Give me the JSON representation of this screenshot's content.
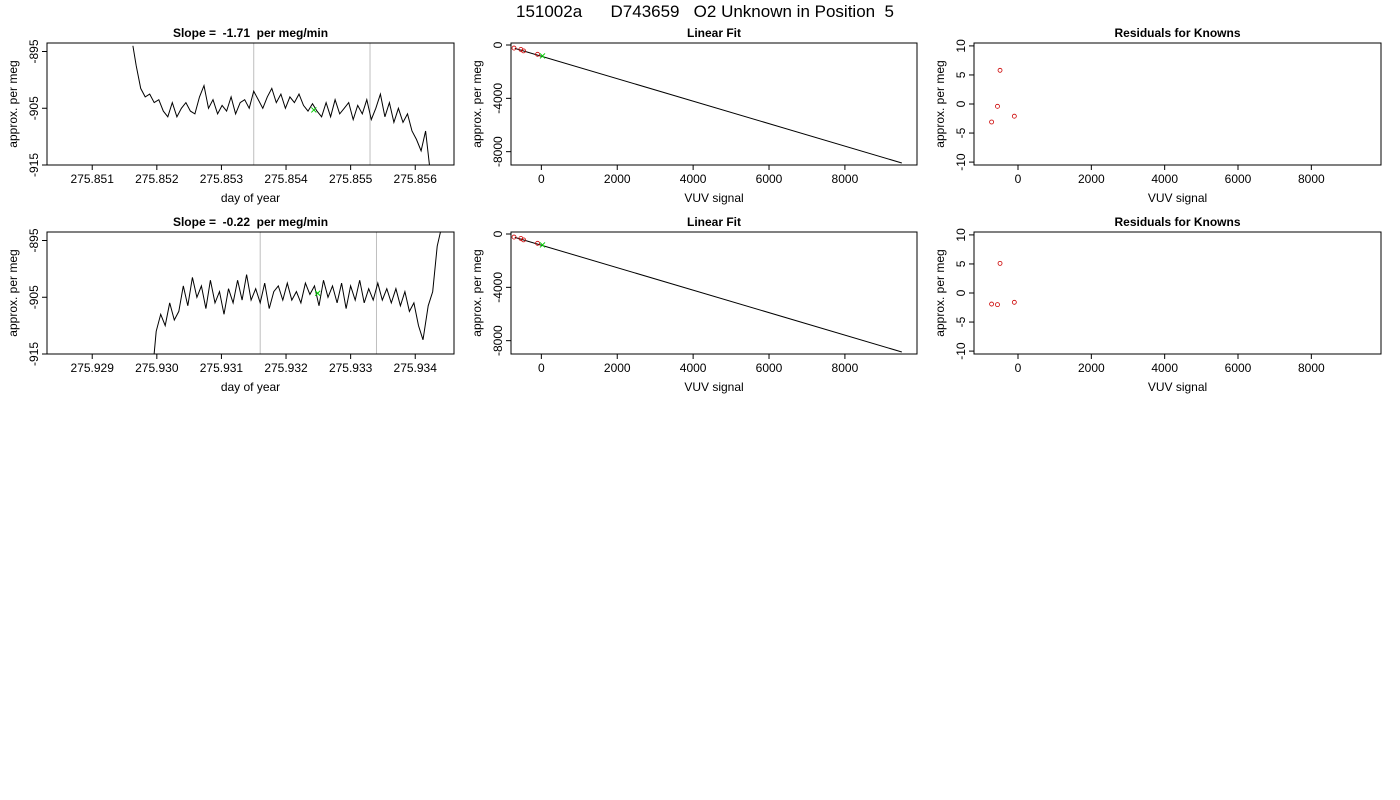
{
  "page": {
    "title": "151002a      D743659   O2 Unknown in Position  5"
  },
  "chart_data": [
    {
      "type": "line",
      "title": "Slope =  -1.71  per meg/min",
      "xlabel": "day of year",
      "ylabel": "approx. per meg",
      "xlim": [
        275.8503,
        275.8566
      ],
      "ylim": [
        -915,
        -893.5
      ],
      "xticks": [
        "275.851",
        "275.852",
        "275.853",
        "275.854",
        "275.855",
        "275.856"
      ],
      "xtick_values": [
        275.851,
        275.852,
        275.853,
        275.854,
        275.855,
        275.856
      ],
      "yticks": [
        "-915",
        "-905",
        "-895"
      ],
      "ytick_values": [
        -915,
        -905,
        -895
      ],
      "vlines": [
        275.8535,
        275.8553
      ],
      "colors": {
        "line": "#000000",
        "vline": "#bebebe",
        "marker": "#00cc00"
      },
      "series": [
        {
          "x": [
            275.85163,
            275.85168,
            275.85175,
            275.85182,
            275.85189,
            275.85196,
            275.85203,
            275.8521,
            275.85217,
            275.85224,
            275.85231,
            275.85238,
            275.85245,
            275.85252,
            275.85259,
            275.85266,
            275.85273,
            275.8528,
            275.85287,
            275.85294,
            275.85301,
            275.85308,
            275.85315,
            275.85322,
            275.85329,
            275.85336,
            275.85343,
            275.8535,
            275.85357,
            275.85364,
            275.85371,
            275.85378,
            275.85385,
            275.85392,
            275.85399,
            275.85406,
            275.85413,
            275.8542,
            275.85427,
            275.85434,
            275.85441,
            275.85448,
            275.85455,
            275.85462,
            275.85469,
            275.85476,
            275.85483,
            275.8549,
            275.85497,
            275.85504,
            275.85511,
            275.85518,
            275.85525,
            275.85532,
            275.85539,
            275.85546,
            275.85553,
            275.8556,
            275.85567,
            275.85574,
            275.85581,
            275.85588,
            275.85595,
            275.85602,
            275.85609,
            275.85616,
            275.85623
          ],
          "y": [
            -894,
            -897.5,
            -901.5,
            -903,
            -902.5,
            -904,
            -903.5,
            -905.5,
            -906.5,
            -904,
            -906.5,
            -905,
            -904,
            -905.5,
            -906,
            -903,
            -901,
            -905,
            -903.5,
            -906,
            -904.5,
            -905.5,
            -903,
            -906,
            -904,
            -903.5,
            -905,
            -902,
            -903.5,
            -905,
            -903,
            -901.5,
            -904,
            -902.5,
            -905,
            -903,
            -904,
            -902.5,
            -904.5,
            -905.5,
            -904.2,
            -905.5,
            -906.5,
            -904,
            -906.5,
            -903.5,
            -906,
            -905,
            -904,
            -907,
            -904.5,
            -906,
            -903.5,
            -907,
            -905,
            -902.5,
            -906.5,
            -904,
            -907.5,
            -905,
            -907.5,
            -906,
            -909,
            -910.5,
            -912.5,
            -909,
            -916
          ]
        }
      ],
      "markers": [
        {
          "x": 275.85443,
          "y": -905.3
        }
      ]
    },
    {
      "type": "scatter",
      "title": "Linear Fit",
      "xlabel": "VUV signal",
      "ylabel": "approx. per meg",
      "xlim": [
        -800,
        9900
      ],
      "ylim": [
        -9000,
        150
      ],
      "xticks": [
        "0",
        "2000",
        "4000",
        "6000",
        "8000"
      ],
      "xtick_values": [
        0,
        2000,
        4000,
        6000,
        8000
      ],
      "yticks": [
        "-8000",
        "-4000",
        "0"
      ],
      "ytick_values": [
        -8000,
        -4000,
        0
      ],
      "fit_line": {
        "x": [
          -700,
          9500
        ],
        "y": [
          -250,
          -8850
        ]
      },
      "colors": {
        "points": "#cc0000",
        "marker": "#00cc00",
        "line": "#000000"
      },
      "points": [
        {
          "x": -720,
          "y": -230
        },
        {
          "x": -540,
          "y": -330
        },
        {
          "x": -470,
          "y": -440
        },
        {
          "x": -100,
          "y": -700
        }
      ],
      "markers": [
        {
          "x": 30,
          "y": -820
        }
      ]
    },
    {
      "type": "scatter",
      "title": "Residuals for Knowns",
      "xlabel": "VUV signal",
      "ylabel": "approx. per meg",
      "xlim": [
        -1200,
        9900
      ],
      "ylim": [
        -10.5,
        10.5
      ],
      "xticks": [
        "0",
        "2000",
        "4000",
        "6000",
        "8000"
      ],
      "xtick_values": [
        0,
        2000,
        4000,
        6000,
        8000
      ],
      "yticks": [
        "-10",
        "-5",
        "0",
        "5",
        "10"
      ],
      "ytick_values": [
        -10,
        -5,
        0,
        5,
        10
      ],
      "colors": {
        "points": "#cc0000"
      },
      "points": [
        {
          "x": -720,
          "y": -3.1
        },
        {
          "x": -560,
          "y": -0.4
        },
        {
          "x": -490,
          "y": 5.8
        },
        {
          "x": -100,
          "y": -2.1
        }
      ]
    },
    {
      "type": "line",
      "title": "Slope =  -0.22  per meg/min",
      "xlabel": "day of year",
      "ylabel": "approx. per meg",
      "xlim": [
        275.9283,
        275.9346
      ],
      "ylim": [
        -915,
        -893.5
      ],
      "xticks": [
        "275.929",
        "275.930",
        "275.931",
        "275.932",
        "275.933",
        "275.934"
      ],
      "xtick_values": [
        275.929,
        275.93,
        275.931,
        275.932,
        275.933,
        275.934
      ],
      "yticks": [
        "-915",
        "-905",
        "-895"
      ],
      "ytick_values": [
        -915,
        -905,
        -895
      ],
      "vlines": [
        275.9316,
        275.9334
      ],
      "colors": {
        "line": "#000000",
        "vline": "#bebebe",
        "marker": "#00cc00"
      },
      "series": [
        {
          "x": [
            275.92995,
            275.92999,
            275.93006,
            275.93013,
            275.9302,
            275.93027,
            275.93034,
            275.93041,
            275.93048,
            275.93055,
            275.93062,
            275.93069,
            275.93076,
            275.93083,
            275.9309,
            275.93097,
            275.93104,
            275.93111,
            275.93118,
            275.93125,
            275.93132,
            275.93139,
            275.93146,
            275.93153,
            275.9316,
            275.93167,
            275.93174,
            275.93181,
            275.93188,
            275.93195,
            275.93202,
            275.93209,
            275.93216,
            275.93223,
            275.9323,
            275.93237,
            275.93244,
            275.93251,
            275.93258,
            275.93265,
            275.93272,
            275.93279,
            275.93286,
            275.93293,
            275.933,
            275.93307,
            275.93314,
            275.93321,
            275.93328,
            275.93335,
            275.93342,
            275.93349,
            275.93356,
            275.93363,
            275.9337,
            275.93377,
            275.93384,
            275.93391,
            275.93398,
            275.93405,
            275.93412,
            275.9342,
            275.93427,
            275.93434,
            275.9344
          ],
          "y": [
            -916,
            -911,
            -908,
            -910,
            -906,
            -909,
            -907.5,
            -903,
            -906.5,
            -901.5,
            -905,
            -903,
            -907,
            -902,
            -906,
            -904,
            -908,
            -903.5,
            -906,
            -902,
            -905.5,
            -901,
            -905.5,
            -903.5,
            -906,
            -902.5,
            -907,
            -904,
            -903,
            -905.5,
            -902.5,
            -905.5,
            -904,
            -906,
            -902.5,
            -904.5,
            -903,
            -906.5,
            -902,
            -905,
            -903,
            -906,
            -902.5,
            -907,
            -903,
            -905.5,
            -902,
            -906,
            -903.5,
            -905.5,
            -902.5,
            -905.5,
            -903.5,
            -906,
            -903.5,
            -906.5,
            -904,
            -907.5,
            -906,
            -910,
            -912.5,
            -906.5,
            -904,
            -896,
            -893
          ]
        }
      ],
      "markers": [
        {
          "x": 275.93249,
          "y": -904.3
        }
      ]
    },
    {
      "type": "scatter",
      "title": "Linear Fit",
      "xlabel": "VUV signal",
      "ylabel": "approx. per meg",
      "xlim": [
        -800,
        9900
      ],
      "ylim": [
        -9000,
        150
      ],
      "xticks": [
        "0",
        "2000",
        "4000",
        "6000",
        "8000"
      ],
      "xtick_values": [
        0,
        2000,
        4000,
        6000,
        8000
      ],
      "yticks": [
        "-8000",
        "-4000",
        "0"
      ],
      "ytick_values": [
        -8000,
        -4000,
        0
      ],
      "fit_line": {
        "x": [
          -700,
          9500
        ],
        "y": [
          -250,
          -8850
        ]
      },
      "colors": {
        "points": "#cc0000",
        "marker": "#00cc00",
        "line": "#000000"
      },
      "points": [
        {
          "x": -720,
          "y": -230
        },
        {
          "x": -540,
          "y": -330
        },
        {
          "x": -470,
          "y": -440
        },
        {
          "x": -100,
          "y": -700
        }
      ],
      "markers": [
        {
          "x": 30,
          "y": -820
        }
      ]
    },
    {
      "type": "scatter",
      "title": "Residuals for Knowns",
      "xlabel": "VUV signal",
      "ylabel": "approx. per meg",
      "xlim": [
        -1200,
        9900
      ],
      "ylim": [
        -10.5,
        10.5
      ],
      "xticks": [
        "0",
        "2000",
        "4000",
        "6000",
        "8000"
      ],
      "xtick_values": [
        0,
        2000,
        4000,
        6000,
        8000
      ],
      "yticks": [
        "-10",
        "-5",
        "0",
        "5",
        "10"
      ],
      "ytick_values": [
        -10,
        -5,
        0,
        5,
        10
      ],
      "colors": {
        "points": "#cc0000"
      },
      "points": [
        {
          "x": -720,
          "y": -1.9
        },
        {
          "x": -560,
          "y": -2.0
        },
        {
          "x": -490,
          "y": 5.1
        },
        {
          "x": -100,
          "y": -1.6
        }
      ]
    }
  ]
}
